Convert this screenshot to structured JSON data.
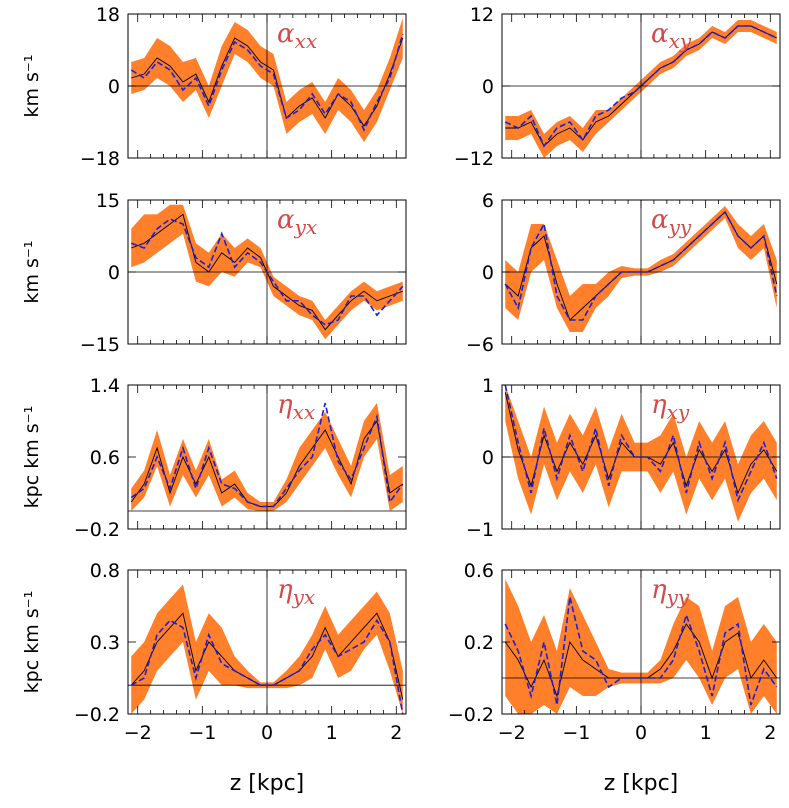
{
  "figure": {
    "xlabel": "z [kpc]",
    "x_tick_labels": [
      "−2",
      "−1",
      "0",
      "1",
      "2"
    ],
    "colors": {
      "band": "#ff7f2a",
      "mean_line": "#000000",
      "fit_line": "#1f1fd6",
      "title": "#d24a4a",
      "axes": "#000000"
    }
  },
  "chart_data": [
    {
      "type": "line",
      "title": "αxx",
      "title_symbol": "α",
      "title_sub": "xx",
      "ylabel": "km s⁻¹",
      "xlim": [
        -2.15,
        2.15
      ],
      "ylim": [
        -18,
        18
      ],
      "y_ticks": [
        -18,
        0,
        18
      ],
      "y_tick_labels": [
        "−18",
        "0",
        "18"
      ],
      "grid": false,
      "x": [
        -2.1,
        -1.9,
        -1.7,
        -1.5,
        -1.3,
        -1.1,
        -0.9,
        -0.7,
        -0.5,
        -0.3,
        -0.1,
        0.1,
        0.3,
        0.5,
        0.7,
        0.9,
        1.1,
        1.3,
        1.5,
        1.7,
        1.9,
        2.1
      ],
      "series": [
        {
          "values": [
            2,
            3,
            7,
            5,
            1,
            3,
            -4,
            5,
            12,
            10,
            6,
            4,
            -8,
            -5,
            -3,
            -8,
            -2,
            -5,
            -10,
            -5,
            3,
            12
          ]
        },
        {
          "values": [
            4,
            2,
            6,
            4,
            -1,
            2,
            -5,
            4,
            11,
            9,
            5,
            3,
            -8,
            -6,
            -2,
            -7,
            -2,
            -4,
            -11,
            -4,
            2,
            13
          ],
          "style": "dashed"
        }
      ],
      "band": {
        "lower": [
          -2,
          -1,
          2,
          0,
          -4,
          -1,
          -8,
          0,
          8,
          6,
          2,
          0,
          -12,
          -9,
          -7,
          -12,
          -6,
          -9,
          -14,
          -9,
          -1,
          7
        ],
        "upper": [
          6,
          7,
          12,
          10,
          6,
          7,
          0,
          10,
          16,
          14,
          10,
          8,
          -4,
          -1,
          1,
          -4,
          2,
          -1,
          -6,
          -1,
          7,
          17
        ]
      }
    },
    {
      "type": "line",
      "title": "αxy",
      "title_symbol": "α",
      "title_sub": "xy",
      "ylabel": "",
      "xlim": [
        -2.15,
        2.15
      ],
      "ylim": [
        -12,
        12
      ],
      "y_ticks": [
        -12,
        0,
        12
      ],
      "y_tick_labels": [
        "−12",
        "0",
        "12"
      ],
      "grid": false,
      "x": [
        -2.1,
        -1.9,
        -1.7,
        -1.5,
        -1.3,
        -1.1,
        -0.9,
        -0.7,
        -0.5,
        -0.3,
        -0.1,
        0.1,
        0.3,
        0.5,
        0.7,
        0.9,
        1.1,
        1.3,
        1.5,
        1.7,
        1.9,
        2.1
      ],
      "series": [
        {
          "values": [
            -7,
            -7,
            -6,
            -10,
            -8,
            -7,
            -9,
            -6,
            -5,
            -3,
            -1,
            1,
            3,
            4,
            6,
            7,
            9,
            8,
            10,
            10,
            9,
            8
          ]
        },
        {
          "values": [
            -6,
            -7,
            -5,
            -10,
            -7,
            -6,
            -9,
            -5,
            -4,
            -2,
            -1,
            1,
            3,
            4,
            6,
            7,
            9,
            8,
            10,
            10,
            9,
            8
          ],
          "style": "dashed"
        }
      ],
      "band": {
        "lower": [
          -9,
          -9,
          -8,
          -12,
          -10,
          -9,
          -11,
          -8,
          -6,
          -4,
          -2,
          0,
          2,
          3,
          5,
          6,
          8,
          7,
          9,
          9,
          8,
          7
        ],
        "upper": [
          -5,
          -5,
          -4,
          -8,
          -6,
          -5,
          -7,
          -4,
          -4,
          -2,
          0,
          2,
          4,
          5,
          7,
          8,
          10,
          9,
          11,
          11,
          10,
          9
        ]
      }
    },
    {
      "type": "line",
      "title": "αyx",
      "title_symbol": "α",
      "title_sub": "yx",
      "ylabel": "km s⁻¹",
      "xlim": [
        -2.15,
        2.15
      ],
      "ylim": [
        -15,
        15
      ],
      "y_ticks": [
        -15,
        0,
        15
      ],
      "y_tick_labels": [
        "−15",
        "0",
        "15"
      ],
      "grid": false,
      "x": [
        -2.1,
        -1.9,
        -1.7,
        -1.5,
        -1.3,
        -1.1,
        -0.9,
        -0.7,
        -0.5,
        -0.3,
        -0.1,
        0.1,
        0.3,
        0.5,
        0.7,
        0.9,
        1.1,
        1.3,
        1.5,
        1.7,
        1.9,
        2.1
      ],
      "series": [
        {
          "values": [
            5,
            6,
            8,
            10,
            12,
            2,
            0,
            4,
            2,
            5,
            3,
            -3,
            -5,
            -7,
            -8,
            -12,
            -9,
            -6,
            -4,
            -6,
            -5,
            -4
          ]
        },
        {
          "values": [
            6,
            5,
            9,
            11,
            10,
            3,
            1,
            8,
            1,
            4,
            2,
            -2,
            -6,
            -6,
            -9,
            -11,
            -10,
            -5,
            -5,
            -9,
            -6,
            -3
          ],
          "style": "dashed"
        }
      ],
      "band": {
        "lower": [
          1,
          2,
          4,
          6,
          8,
          -2,
          -3,
          0,
          -1,
          2,
          1,
          -5,
          -7,
          -9,
          -10,
          -14,
          -11,
          -8,
          -6,
          -8,
          -7,
          -6
        ],
        "upper": [
          9,
          12,
          12,
          14,
          14,
          6,
          4,
          8,
          5,
          7,
          5,
          -1,
          -3,
          -5,
          -6,
          -10,
          -7,
          -4,
          -2,
          -4,
          -3,
          -2
        ]
      }
    },
    {
      "type": "line",
      "title": "αyy",
      "title_symbol": "α",
      "title_sub": "yy",
      "ylabel": "",
      "xlim": [
        -2.15,
        2.15
      ],
      "ylim": [
        -6,
        6
      ],
      "y_ticks": [
        -6,
        0,
        6
      ],
      "y_tick_labels": [
        "−6",
        "0",
        "6"
      ],
      "grid": false,
      "x": [
        -2.1,
        -1.9,
        -1.7,
        -1.5,
        -1.3,
        -1.1,
        -0.9,
        -0.7,
        -0.5,
        -0.3,
        -0.1,
        0.1,
        0.3,
        0.5,
        0.7,
        0.9,
        1.1,
        1.3,
        1.5,
        1.7,
        1.9,
        2.1
      ],
      "series": [
        {
          "values": [
            -1,
            -2,
            2,
            3,
            -1,
            -4,
            -3,
            -2,
            -1,
            0,
            0,
            0,
            0.5,
            1,
            2,
            3,
            4,
            5,
            3,
            2,
            3,
            -1
          ]
        },
        {
          "values": [
            -1,
            -3,
            2,
            4,
            -2,
            -4,
            -4,
            -2,
            -1,
            0,
            0,
            0,
            0.5,
            1,
            2,
            3,
            4,
            5,
            3,
            2,
            3,
            -2
          ],
          "style": "dashed"
        }
      ],
      "band": {
        "lower": [
          -3,
          -4,
          0,
          1,
          -3,
          -5,
          -5,
          -3,
          -2,
          -0.5,
          -0.3,
          -0.3,
          0,
          0.5,
          1.5,
          2.5,
          3.5,
          4.5,
          2,
          1,
          2,
          -3
        ],
        "upper": [
          1,
          0,
          4,
          4,
          1,
          -2,
          -1,
          -1,
          0,
          0.5,
          0.3,
          0.3,
          1,
          1.5,
          2.5,
          3.5,
          4.5,
          5.5,
          4,
          3,
          4,
          1
        ]
      }
    },
    {
      "type": "line",
      "title": "ηxx",
      "title_symbol": "η",
      "title_sub": "xx",
      "ylabel": "kpc km s⁻¹",
      "xlim": [
        -2.15,
        2.15
      ],
      "ylim": [
        -0.2,
        1.4
      ],
      "y_ticks": [
        -0.2,
        0.6,
        1.4
      ],
      "y_tick_labels": [
        "−0.2",
        "0.6",
        "1.4"
      ],
      "grid": false,
      "x": [
        -2.1,
        -1.9,
        -1.7,
        -1.5,
        -1.3,
        -1.1,
        -0.9,
        -0.7,
        -0.5,
        -0.3,
        -0.1,
        0.1,
        0.3,
        0.5,
        0.7,
        0.9,
        1.1,
        1.3,
        1.5,
        1.7,
        1.9,
        2.1
      ],
      "series": [
        {
          "values": [
            0.1,
            0.3,
            0.7,
            0.2,
            0.6,
            0.3,
            0.6,
            0.2,
            0.3,
            0.1,
            0.05,
            0.05,
            0.2,
            0.5,
            0.7,
            0.9,
            0.6,
            0.3,
            0.8,
            1.0,
            0.2,
            0.3
          ]
        },
        {
          "values": [
            0.15,
            0.25,
            0.6,
            0.25,
            0.7,
            0.25,
            0.7,
            0.3,
            0.25,
            0.1,
            0.05,
            0.05,
            0.25,
            0.45,
            0.6,
            1.2,
            0.55,
            0.35,
            0.7,
            1.05,
            0.1,
            0.3
          ],
          "style": "dashed"
        }
      ],
      "band": {
        "lower": [
          0.0,
          0.15,
          0.5,
          0.05,
          0.4,
          0.15,
          0.4,
          0.05,
          0.15,
          0.02,
          0.0,
          0.0,
          0.1,
          0.3,
          0.5,
          0.7,
          0.4,
          0.15,
          0.6,
          0.8,
          0.0,
          0.1
        ],
        "upper": [
          0.25,
          0.45,
          0.9,
          0.4,
          0.8,
          0.45,
          0.8,
          0.35,
          0.45,
          0.2,
          0.1,
          0.1,
          0.35,
          0.7,
          0.9,
          1.1,
          0.8,
          0.5,
          1.0,
          1.2,
          0.4,
          0.5
        ]
      }
    },
    {
      "type": "line",
      "title": "ηxy",
      "title_symbol": "η",
      "title_sub": "xy",
      "ylabel": "",
      "xlim": [
        -2.15,
        2.15
      ],
      "ylim": [
        -1,
        1
      ],
      "y_ticks": [
        -1,
        0,
        1
      ],
      "y_tick_labels": [
        "−1",
        "0",
        "1"
      ],
      "grid": false,
      "x": [
        -2.1,
        -1.9,
        -1.7,
        -1.5,
        -1.3,
        -1.1,
        -0.9,
        -0.7,
        -0.5,
        -0.3,
        -0.1,
        0.1,
        0.3,
        0.5,
        0.7,
        0.9,
        1.1,
        1.3,
        1.5,
        1.7,
        1.9,
        2.1
      ],
      "series": [
        {
          "values": [
            0.9,
            0.1,
            -0.4,
            0.3,
            -0.2,
            0.2,
            -0.1,
            0.3,
            -0.3,
            0.2,
            0,
            0,
            -0.1,
            0.2,
            -0.4,
            0.1,
            -0.2,
            0.1,
            -0.5,
            -0.1,
            0.1,
            -0.2
          ]
        },
        {
          "values": [
            1.0,
            0.2,
            -0.5,
            0.4,
            -0.3,
            0.3,
            -0.2,
            0.4,
            -0.4,
            0.3,
            0,
            0,
            -0.2,
            0.3,
            -0.5,
            0.2,
            -0.3,
            0.2,
            -0.6,
            -0.2,
            0.2,
            -0.3
          ],
          "style": "dashed"
        }
      ],
      "band": {
        "lower": [
          0.5,
          -0.3,
          -0.8,
          -0.1,
          -0.6,
          -0.2,
          -0.5,
          -0.1,
          -0.7,
          -0.2,
          -0.2,
          -0.2,
          -0.5,
          -0.2,
          -0.8,
          -0.3,
          -0.6,
          -0.3,
          -0.9,
          -0.5,
          -0.3,
          -0.6
        ],
        "upper": [
          1.0,
          0.5,
          0.0,
          0.7,
          0.2,
          0.6,
          0.3,
          0.7,
          0.1,
          0.6,
          0.2,
          0.2,
          0.3,
          0.6,
          0.0,
          0.5,
          0.2,
          0.5,
          -0.1,
          0.3,
          0.5,
          0.2
        ]
      }
    },
    {
      "type": "line",
      "title": "ηyx",
      "title_symbol": "η",
      "title_sub": "yx",
      "ylabel": "kpc km s⁻¹",
      "xlim": [
        -2.15,
        2.15
      ],
      "ylim": [
        -0.2,
        0.8
      ],
      "y_ticks": [
        -0.2,
        0.3,
        0.8
      ],
      "y_tick_labels": [
        "−0.2",
        "0.3",
        "0.8"
      ],
      "grid": false,
      "x": [
        -2.1,
        -1.9,
        -1.7,
        -1.5,
        -1.3,
        -1.1,
        -0.9,
        -0.7,
        -0.5,
        -0.3,
        -0.1,
        0.1,
        0.3,
        0.5,
        0.7,
        0.9,
        1.1,
        1.3,
        1.5,
        1.7,
        1.9,
        2.1
      ],
      "series": [
        {
          "values": [
            0.0,
            0.1,
            0.3,
            0.4,
            0.5,
            0.1,
            0.3,
            0.2,
            0.1,
            0.05,
            0.0,
            0.0,
            0.05,
            0.1,
            0.2,
            0.4,
            0.2,
            0.3,
            0.4,
            0.5,
            0.3,
            -0.1
          ]
        },
        {
          "values": [
            0.0,
            0.05,
            0.35,
            0.45,
            0.4,
            0.05,
            0.35,
            0.15,
            0.1,
            0.05,
            0.0,
            0.0,
            0.05,
            0.1,
            0.25,
            0.35,
            0.2,
            0.25,
            0.3,
            0.45,
            0.3,
            -0.2
          ],
          "style": "dashed"
        }
      ],
      "band": {
        "lower": [
          -0.2,
          -0.1,
          0.1,
          0.2,
          0.3,
          -0.1,
          0.1,
          0.0,
          0.0,
          -0.02,
          -0.02,
          -0.02,
          -0.02,
          0.0,
          0.05,
          0.25,
          0.05,
          0.1,
          0.25,
          0.35,
          0.1,
          -0.2
        ],
        "upper": [
          0.2,
          0.3,
          0.5,
          0.6,
          0.7,
          0.3,
          0.5,
          0.4,
          0.2,
          0.1,
          0.02,
          0.02,
          0.1,
          0.2,
          0.35,
          0.55,
          0.35,
          0.45,
          0.55,
          0.65,
          0.5,
          0.1
        ]
      }
    },
    {
      "type": "line",
      "title": "ηyy",
      "title_symbol": "η",
      "title_sub": "yy",
      "ylabel": "",
      "xlim": [
        -2.15,
        2.15
      ],
      "ylim": [
        -0.2,
        0.6
      ],
      "y_ticks": [
        -0.2,
        0.2,
        0.6
      ],
      "y_tick_labels": [
        "−0.2",
        "0.2",
        "0.6"
      ],
      "grid": false,
      "x": [
        -2.1,
        -1.9,
        -1.7,
        -1.5,
        -1.3,
        -1.1,
        -0.9,
        -0.7,
        -0.5,
        -0.3,
        -0.1,
        0.1,
        0.3,
        0.5,
        0.7,
        0.9,
        1.1,
        1.3,
        1.5,
        1.7,
        1.9,
        2.1
      ],
      "series": [
        {
          "values": [
            0.2,
            0.1,
            -0.05,
            0.1,
            -0.1,
            0.2,
            0.1,
            0.05,
            0.0,
            0.0,
            0.0,
            0.0,
            0.05,
            0.15,
            0.3,
            0.2,
            0.0,
            0.2,
            0.25,
            0.0,
            0.1,
            0.0
          ]
        },
        {
          "values": [
            0.3,
            0.15,
            -0.1,
            0.2,
            -0.15,
            0.45,
            0.15,
            0.1,
            -0.05,
            0.0,
            0.0,
            0.0,
            0.0,
            0.1,
            0.35,
            0.15,
            -0.1,
            0.25,
            0.3,
            -0.15,
            0.05,
            -0.05
          ],
          "style": "dashed"
        }
      ],
      "band": {
        "lower": [
          -0.1,
          -0.2,
          -0.2,
          -0.15,
          -0.2,
          -0.05,
          -0.1,
          -0.1,
          -0.05,
          -0.03,
          -0.03,
          -0.03,
          -0.03,
          0.0,
          0.1,
          0.0,
          -0.15,
          0.0,
          0.05,
          -0.2,
          -0.1,
          -0.2
        ],
        "upper": [
          0.55,
          0.4,
          0.2,
          0.35,
          0.15,
          0.5,
          0.35,
          0.2,
          0.05,
          0.03,
          0.03,
          0.03,
          0.1,
          0.3,
          0.45,
          0.4,
          0.15,
          0.4,
          0.45,
          0.2,
          0.3,
          0.2
        ]
      }
    }
  ]
}
